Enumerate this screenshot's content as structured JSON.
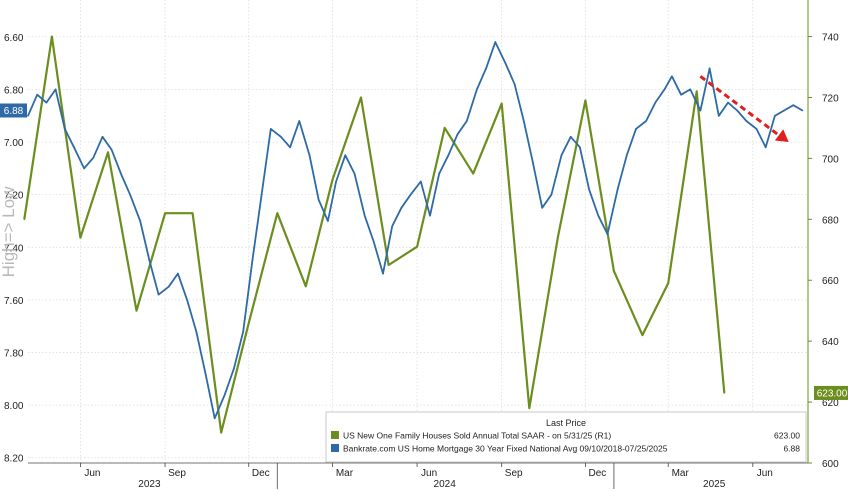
{
  "chart_data": {
    "type": "line",
    "title": "",
    "ylabel": "High=> Low",
    "left_axis": {
      "ticks": [
        6.6,
        6.8,
        7.0,
        7.2,
        7.4,
        7.6,
        7.8,
        8.0,
        8.2
      ],
      "tick_labels": [
        "6.60",
        "6.80",
        "7.00",
        "7.20",
        "7.40",
        "7.60",
        "7.80",
        "8.00",
        "8.20"
      ],
      "range": [
        6.46,
        8.22
      ],
      "inverted": true
    },
    "right_axis": {
      "ticks": [
        600,
        620,
        640,
        660,
        680,
        700,
        720,
        740
      ],
      "tick_labels": [
        "600",
        "620",
        "640",
        "660",
        "680",
        "700",
        "720",
        "740"
      ],
      "range": [
        600,
        752
      ]
    },
    "x_axis": {
      "month_labels": [
        "Jun",
        "Sep",
        "Dec",
        "Mar",
        "Jun",
        "Sep",
        "Dec",
        "Mar",
        "Jun"
      ],
      "month_dates": [
        "2023-06",
        "2023-09",
        "2023-12",
        "2024-03",
        "2024-06",
        "2024-09",
        "2024-12",
        "2025-03",
        "2025-06"
      ],
      "year_labels": [
        "2023",
        "2024",
        "2025"
      ],
      "range": [
        "2023-04-05",
        "2025-07-31"
      ]
    },
    "series": [
      {
        "name": "US New One Family Houses Sold Annual Total SAAR - on 5/31/25 (R1)",
        "last_value": "623.00",
        "axis": "right",
        "color": "#6b8e1e",
        "x": [
          "2023-04-01",
          "2023-05-01",
          "2023-06-01",
          "2023-07-01",
          "2023-08-01",
          "2023-09-01",
          "2023-10-01",
          "2023-11-01",
          "2023-12-01",
          "2024-01-01",
          "2024-02-01",
          "2024-03-01",
          "2024-04-01",
          "2024-05-01",
          "2024-06-01",
          "2024-07-01",
          "2024-08-01",
          "2024-09-01",
          "2024-10-01",
          "2024-11-01",
          "2024-12-01",
          "2025-01-01",
          "2025-02-01",
          "2025-03-01",
          "2025-04-01",
          "2025-05-01"
        ],
        "values": [
          680,
          740,
          674,
          702,
          650,
          682,
          682,
          610,
          646,
          682,
          658,
          693,
          720,
          665,
          671,
          710,
          695,
          718,
          618,
          674,
          719,
          663,
          642,
          659,
          722,
          623
        ]
      },
      {
        "name": "Bankrate.com US Home Mortgage 30 Year Fixed National Avg 09/10/2018-07/25/2025",
        "last_value": "6.88",
        "axis": "left",
        "color": "#2e6aa6",
        "x": [
          "2023-04-05",
          "2023-04-15",
          "2023-04-25",
          "2023-05-05",
          "2023-05-15",
          "2023-05-25",
          "2023-06-05",
          "2023-06-15",
          "2023-06-25",
          "2023-07-05",
          "2023-07-15",
          "2023-07-25",
          "2023-08-05",
          "2023-08-15",
          "2023-08-25",
          "2023-09-05",
          "2023-09-15",
          "2023-09-25",
          "2023-10-05",
          "2023-10-15",
          "2023-10-25",
          "2023-11-05",
          "2023-11-15",
          "2023-11-25",
          "2023-12-05",
          "2023-12-15",
          "2023-12-25",
          "2024-01-05",
          "2024-01-15",
          "2024-01-25",
          "2024-02-05",
          "2024-02-15",
          "2024-02-25",
          "2024-03-05",
          "2024-03-15",
          "2024-03-25",
          "2024-04-05",
          "2024-04-15",
          "2024-04-25",
          "2024-05-05",
          "2024-05-15",
          "2024-05-25",
          "2024-06-05",
          "2024-06-15",
          "2024-06-25",
          "2024-07-05",
          "2024-07-15",
          "2024-07-25",
          "2024-08-05",
          "2024-08-15",
          "2024-08-25",
          "2024-09-05",
          "2024-09-15",
          "2024-09-25",
          "2024-10-05",
          "2024-10-15",
          "2024-10-25",
          "2024-11-05",
          "2024-11-15",
          "2024-11-25",
          "2024-12-05",
          "2024-12-15",
          "2024-12-25",
          "2025-01-05",
          "2025-01-15",
          "2025-01-25",
          "2025-02-05",
          "2025-02-15",
          "2025-02-25",
          "2025-03-05",
          "2025-03-15",
          "2025-03-25",
          "2025-04-05",
          "2025-04-15",
          "2025-04-25",
          "2025-05-05",
          "2025-05-15",
          "2025-05-25",
          "2025-06-05",
          "2025-06-15",
          "2025-06-25",
          "2025-07-05",
          "2025-07-15",
          "2025-07-25"
        ],
        "values": [
          6.9,
          6.82,
          6.85,
          6.8,
          6.95,
          7.02,
          7.1,
          7.06,
          6.98,
          7.03,
          7.12,
          7.2,
          7.3,
          7.45,
          7.58,
          7.55,
          7.5,
          7.6,
          7.72,
          7.88,
          8.05,
          7.96,
          7.86,
          7.72,
          7.45,
          7.2,
          6.95,
          6.98,
          7.02,
          6.92,
          7.05,
          7.22,
          7.3,
          7.15,
          7.05,
          7.12,
          7.28,
          7.38,
          7.5,
          7.32,
          7.25,
          7.2,
          7.15,
          7.28,
          7.12,
          7.05,
          6.97,
          6.92,
          6.8,
          6.72,
          6.62,
          6.7,
          6.78,
          6.92,
          7.08,
          7.25,
          7.2,
          7.05,
          6.98,
          7.02,
          7.18,
          7.28,
          7.35,
          7.18,
          7.05,
          6.95,
          6.92,
          6.85,
          6.8,
          6.75,
          6.82,
          6.8,
          6.88,
          6.72,
          6.9,
          6.85,
          6.88,
          6.92,
          6.95,
          7.02,
          6.9,
          6.88,
          6.86,
          6.88
        ]
      }
    ],
    "legend": {
      "title": "Last Price",
      "placement": "bottom-right"
    },
    "annotations": [
      {
        "type": "arrow",
        "style": "dashed",
        "color": "#e02020",
        "from_x": "2025-04-05",
        "from_y_mortgage": 6.75,
        "to_x": "2025-07-10",
        "to_y_mortgage": 7.0
      }
    ]
  }
}
